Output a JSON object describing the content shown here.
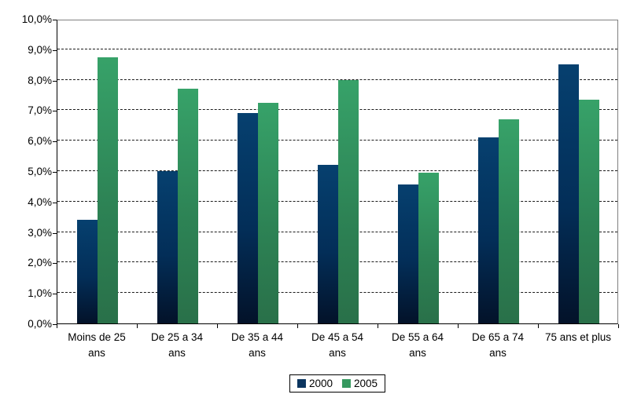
{
  "chart_data": {
    "type": "bar",
    "title": "",
    "xlabel": "",
    "ylabel": "",
    "categories": [
      "Moins de 25 ans",
      "De 25 a 34 ans",
      "De 35 a 44 ans",
      "De 45 a 54 ans",
      "De 55 a 64 ans",
      "De 65 a 74 ans",
      "75 ans et plus"
    ],
    "xlabel_lines": [
      [
        "Moins de 25",
        "ans"
      ],
      [
        "De 25 a 34",
        "ans"
      ],
      [
        "De 35 a 44",
        "ans"
      ],
      [
        "De 45 a 54",
        "ans"
      ],
      [
        "De 55 a 64",
        "ans"
      ],
      [
        "De 65 a 74",
        "ans"
      ],
      [
        "75 ans et plus"
      ]
    ],
    "series": [
      {
        "name": "2000",
        "values": [
          3.4,
          5.0,
          6.9,
          5.2,
          4.55,
          6.1,
          8.5
        ],
        "color_top": "#06406f",
        "color_mid": "#032e58",
        "color_bottom": "#031229"
      },
      {
        "name": "2005",
        "values": [
          8.75,
          7.7,
          7.25,
          8.0,
          4.95,
          6.7,
          7.35
        ],
        "color_top": "#37a269",
        "color_mid": "#2d8355",
        "color_bottom": "#297049"
      }
    ],
    "ylim": [
      0,
      10
    ],
    "ytick_step": 1,
    "yticklabels": [
      "0,0%",
      "1,0%",
      "2,0%",
      "3,0%",
      "4,0%",
      "5,0%",
      "6,0%",
      "7,0%",
      "8,0%",
      "9,0%",
      "10,0%"
    ],
    "grid": "horizontal-dashed",
    "legend_position": "bottom-center"
  },
  "legend": {
    "items": [
      {
        "label": "2000",
        "color": "#0b355f"
      },
      {
        "label": "2005",
        "color": "#36995f"
      }
    ]
  }
}
